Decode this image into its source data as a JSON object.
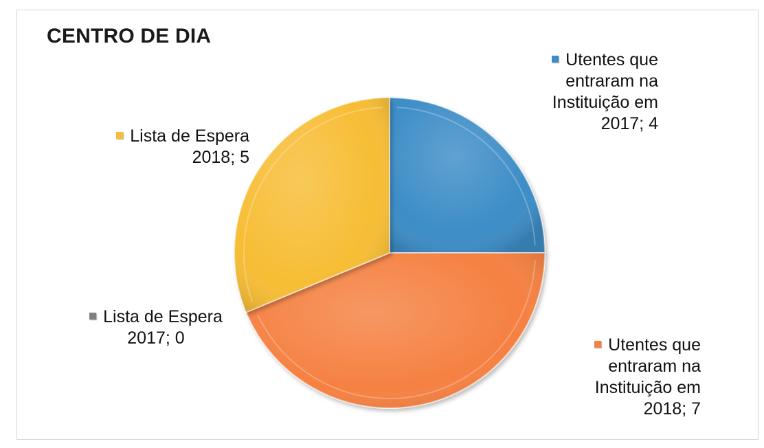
{
  "chart_data": {
    "type": "pie",
    "title": "CENTRO DE DIA",
    "slices": [
      {
        "category_lines": [
          "Utentes que",
          "entraram na",
          "Instituição em",
          "2017"
        ],
        "value": 4,
        "label_lines": [
          "Utentes que",
          "entraram na",
          "Instituição em",
          "2017; 4"
        ],
        "color": "#3c8dc7"
      },
      {
        "category_lines": [
          "Utentes que",
          "entraram na",
          "Instituição em",
          "2018"
        ],
        "value": 7,
        "label_lines": [
          "Utentes que",
          "entraram na",
          "Instituição em",
          "2018; 7"
        ],
        "color": "#f58142"
      },
      {
        "category_lines": [
          "Lista de Espera",
          "2017"
        ],
        "value": 0,
        "label_lines": [
          "Lista de Espera",
          "2017; 0"
        ],
        "color": "#7f7f7f"
      },
      {
        "category_lines": [
          "Lista de Espera",
          "2018"
        ],
        "value": 5,
        "label_lines": [
          "Lista de Espera",
          "2018; 5"
        ],
        "color": "#f7bd35"
      }
    ],
    "start_angle_deg": 0,
    "direction": "clockwise",
    "style": "3d-bevel",
    "legend": "none",
    "data_labels": "category; value"
  }
}
